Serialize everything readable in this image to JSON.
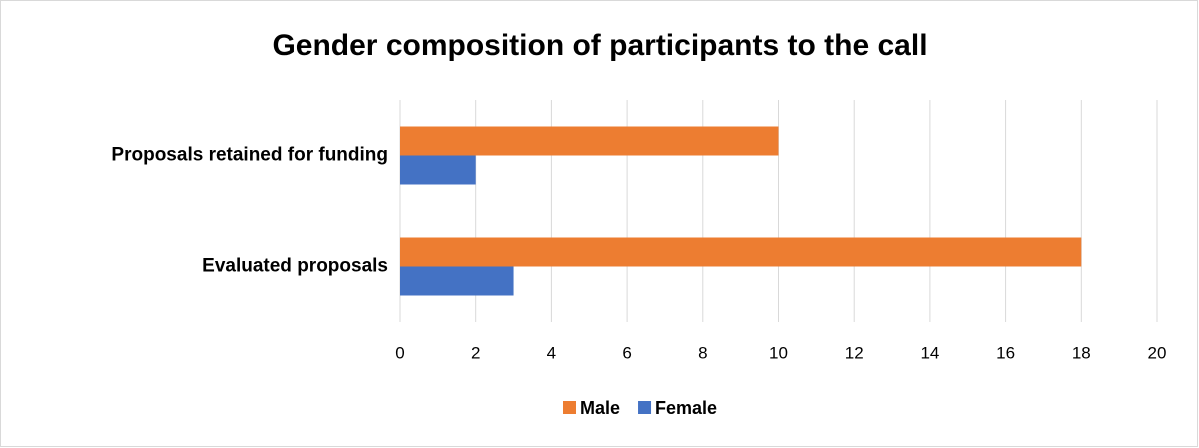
{
  "chart_data": {
    "type": "bar",
    "orientation": "horizontal",
    "title": "Gender composition of participants to the call",
    "categories": [
      "Evaluated proposals",
      "Proposals retained for funding"
    ],
    "series": [
      {
        "name": "Male",
        "color": "#ed7d31",
        "values": [
          18,
          10
        ]
      },
      {
        "name": "Female",
        "color": "#4472c4",
        "values": [
          3,
          2
        ]
      }
    ],
    "xlim": [
      0,
      20
    ],
    "xticks": [
      0,
      2,
      4,
      6,
      8,
      10,
      12,
      14,
      16,
      18,
      20
    ],
    "grid": true,
    "legend": "bottom"
  }
}
